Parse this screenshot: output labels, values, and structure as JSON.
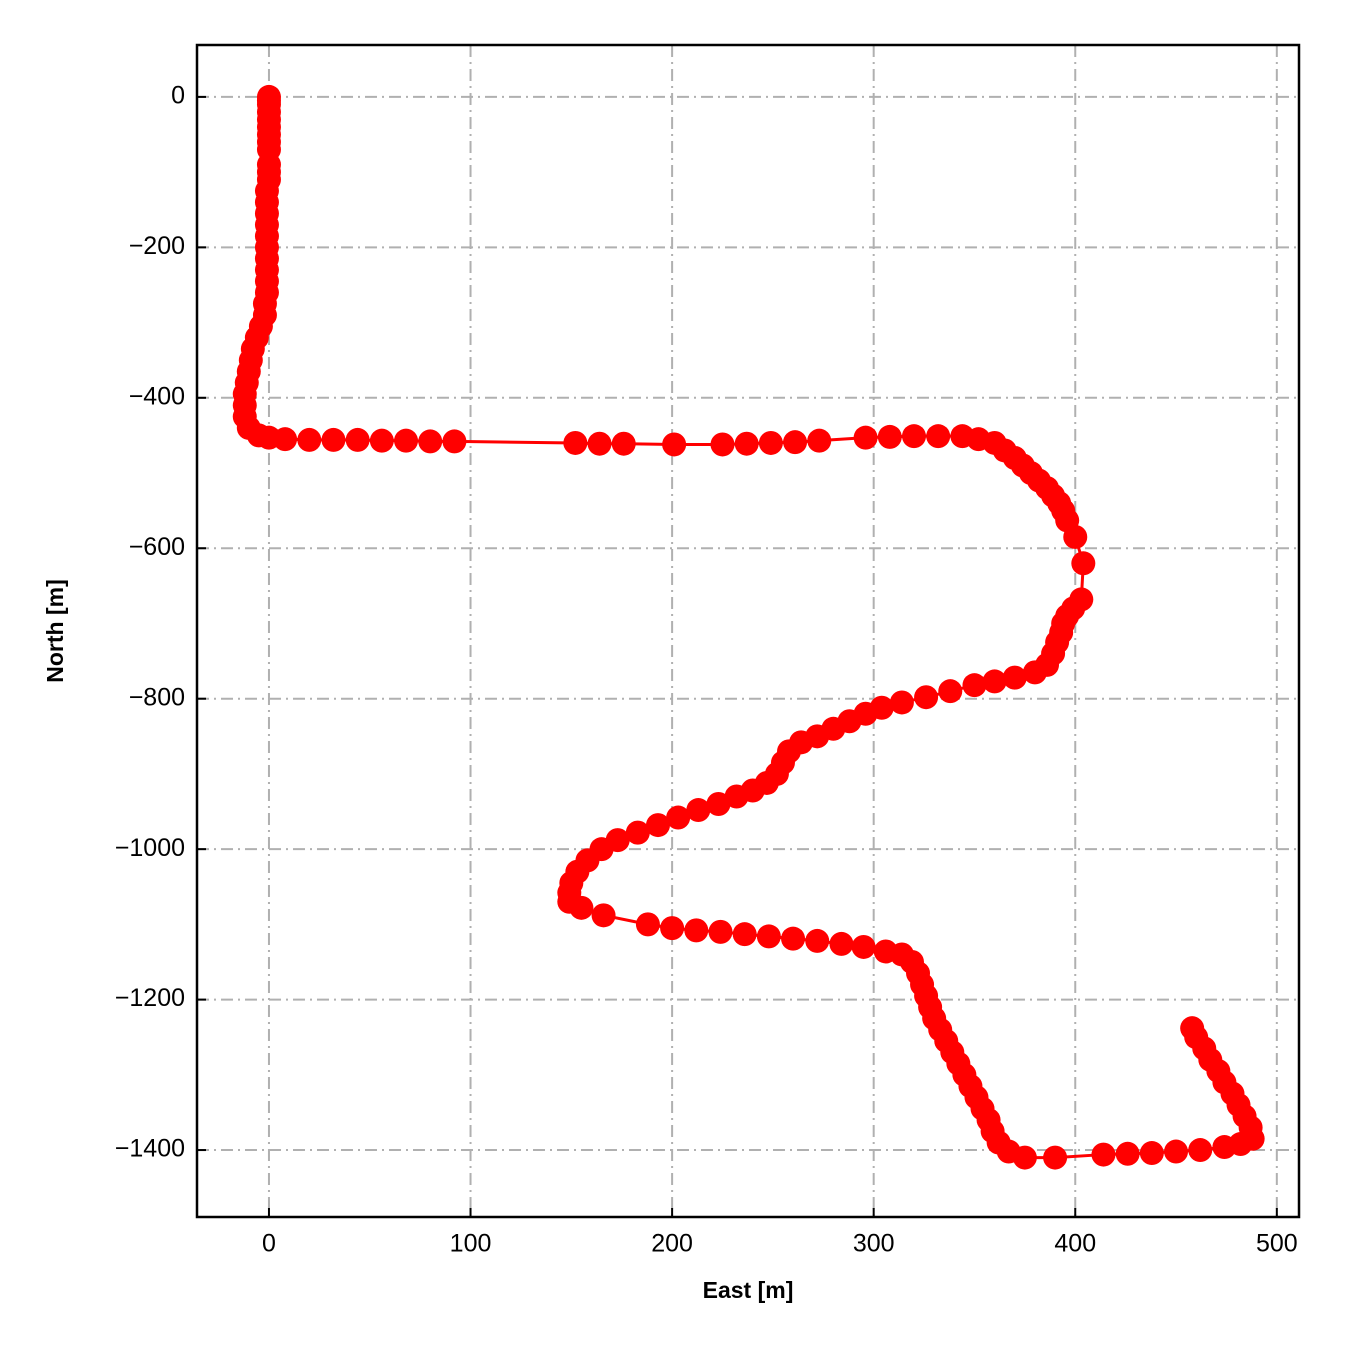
{
  "chart_data": {
    "type": "line",
    "markers": true,
    "color": "#ff0000",
    "grid": true,
    "xlabel": "East [m]",
    "ylabel": "North [m]",
    "xlim": [
      -35.7,
      511
    ],
    "ylim": [
      -1489,
      69
    ],
    "xticks": [
      0,
      100,
      200,
      300,
      400,
      500
    ],
    "yticks": [
      0,
      {
        "value": -200,
        "label": "−200"
      },
      {
        "value": -400,
        "label": "−400"
      },
      {
        "value": -600,
        "label": "−600"
      },
      {
        "value": -800,
        "label": "−800"
      },
      {
        "value": -1000,
        "label": "−1000"
      },
      {
        "value": -1200,
        "label": "−1200"
      },
      {
        "value": -1400,
        "label": "−1400"
      }
    ],
    "x": [
      0,
      0,
      0,
      0,
      0,
      0,
      0,
      0,
      0,
      0,
      0,
      0,
      -1,
      -1,
      -1,
      -1,
      -1,
      -1,
      -1,
      -1,
      -1,
      -1,
      -2,
      -2,
      -4,
      -6,
      -8,
      -9,
      -10,
      -11,
      -12,
      -12,
      -12,
      -10,
      -5,
      0,
      8,
      20,
      32,
      44,
      56,
      68,
      80,
      92,
      152,
      164,
      176,
      201,
      225,
      237,
      249,
      261,
      273,
      296,
      308,
      320,
      332,
      344,
      352,
      360,
      365,
      370,
      374,
      378,
      382,
      386,
      389,
      392,
      394,
      396,
      400,
      404,
      403,
      399,
      396,
      394,
      393,
      391,
      389,
      386,
      380,
      370,
      360,
      350,
      338,
      326,
      314,
      304,
      296,
      288,
      280,
      272,
      264,
      258,
      255,
      252,
      247,
      240,
      232,
      223,
      213,
      203,
      193,
      183,
      173,
      165,
      158,
      153,
      150,
      149,
      149,
      155,
      166,
      188,
      200,
      212,
      224,
      236,
      248,
      260,
      272,
      284,
      295,
      306,
      314,
      319,
      322,
      324,
      326,
      328,
      330,
      333,
      336,
      339,
      342,
      345,
      348,
      351,
      354,
      357,
      359,
      362,
      367,
      375,
      390,
      414,
      426,
      438,
      450,
      462,
      474,
      482,
      488,
      487,
      484,
      481,
      478,
      474,
      471,
      467,
      464,
      460,
      458
    ],
    "values": [
      0,
      -5,
      -10,
      -20,
      -30,
      -40,
      -50,
      -60,
      -70,
      -90,
      -100,
      -110,
      -125,
      -140,
      -155,
      -170,
      -185,
      -200,
      -215,
      -230,
      -245,
      -260,
      -275,
      -290,
      -305,
      -320,
      -335,
      -350,
      -365,
      -380,
      -395,
      -410,
      -425,
      -440,
      -450,
      -453,
      -455,
      -456,
      -456,
      -456,
      -457,
      -457,
      -458,
      -458,
      -460,
      -461,
      -461,
      -462,
      -462,
      -461,
      -460,
      -459,
      -457,
      -453,
      -452,
      -451,
      -451,
      -451,
      -455,
      -460,
      -470,
      -480,
      -490,
      -500,
      -510,
      -520,
      -530,
      -540,
      -550,
      -563,
      -585,
      -620,
      -668,
      -680,
      -690,
      -700,
      -712,
      -725,
      -740,
      -755,
      -765,
      -772,
      -777,
      -782,
      -790,
      -798,
      -805,
      -812,
      -820,
      -830,
      -840,
      -850,
      -858,
      -870,
      -885,
      -900,
      -912,
      -922,
      -930,
      -940,
      -948,
      -958,
      -968,
      -978,
      -988,
      -1000,
      -1015,
      -1030,
      -1045,
      -1058,
      -1070,
      -1078,
      -1088,
      -1100,
      -1105,
      -1108,
      -1110,
      -1113,
      -1116,
      -1119,
      -1122,
      -1126,
      -1130,
      -1136,
      -1140,
      -1150,
      -1165,
      -1180,
      -1195,
      -1210,
      -1225,
      -1240,
      -1255,
      -1270,
      -1285,
      -1300,
      -1315,
      -1330,
      -1345,
      -1360,
      -1375,
      -1390,
      -1402,
      -1410,
      -1410,
      -1406,
      -1405,
      -1404,
      -1402,
      -1400,
      -1396,
      -1392,
      -1385,
      -1370,
      -1355,
      -1340,
      -1325,
      -1310,
      -1295,
      -1280,
      -1265,
      -1250,
      -1238
    ]
  }
}
